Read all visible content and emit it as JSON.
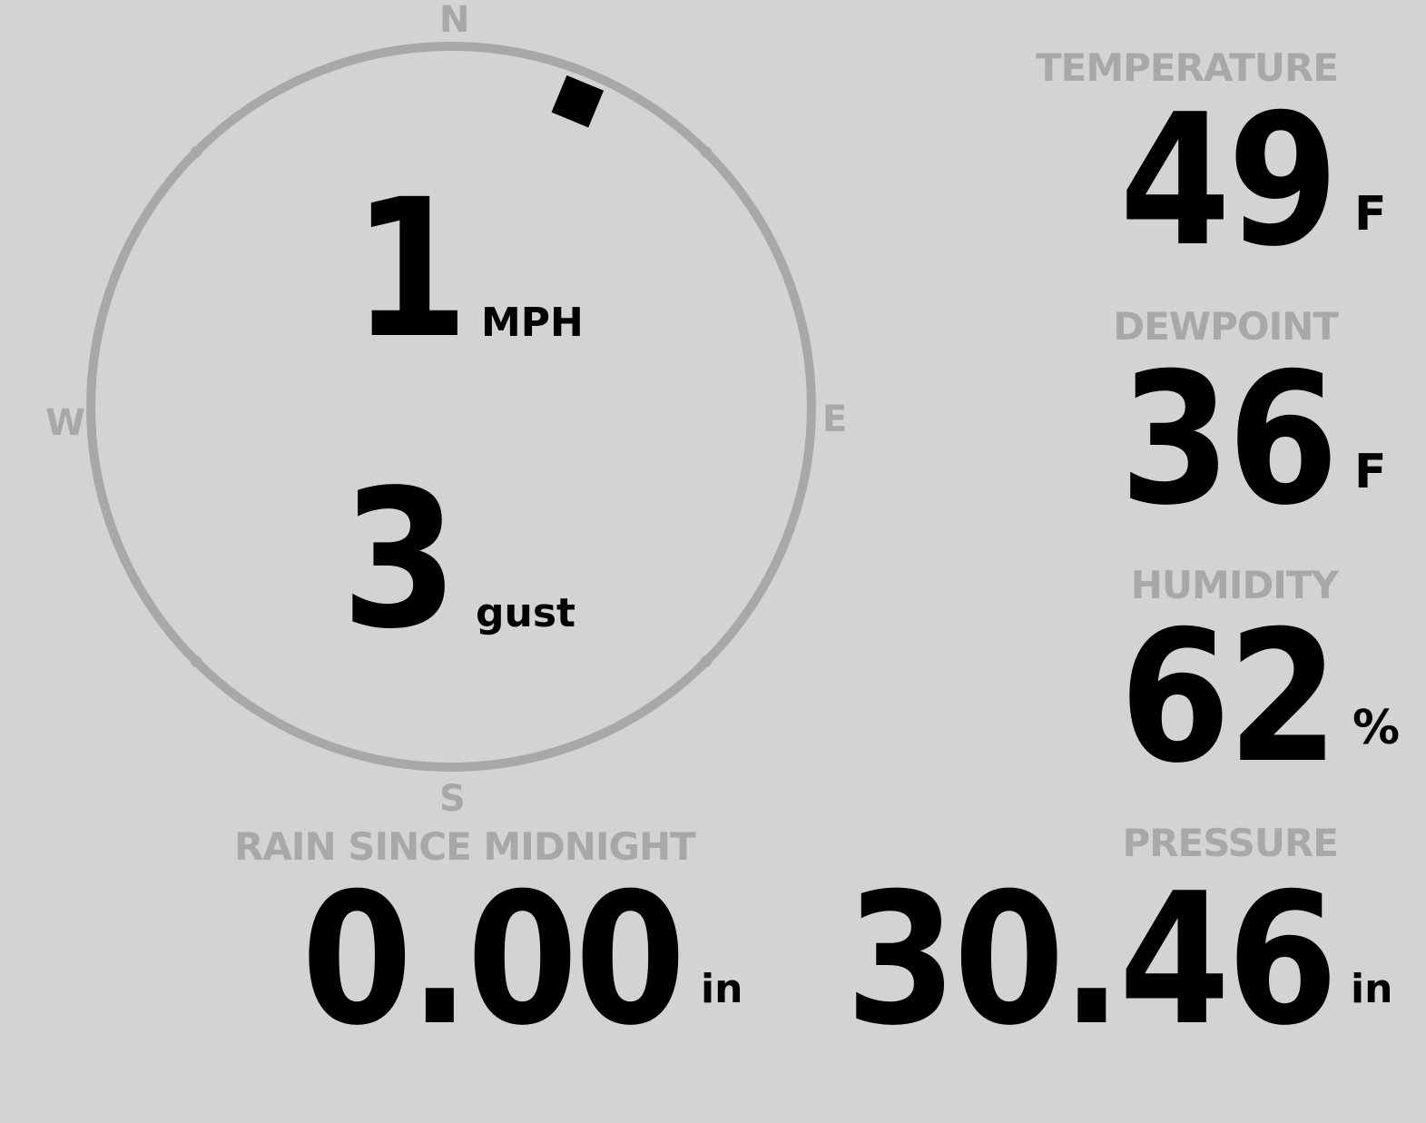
{
  "colors": {
    "background": "#d3d3d3",
    "label": "#a8a8a8",
    "value": "#000000"
  },
  "compass": {
    "north": "N",
    "east": "E",
    "south": "S",
    "west": "W",
    "wind_direction_deg": 22.5
  },
  "wind": {
    "speed": "1",
    "speed_unit": "MPH",
    "gust": "3",
    "gust_unit": "gust"
  },
  "temperature": {
    "label": "TEMPERATURE",
    "value": "49",
    "unit": "F"
  },
  "dewpoint": {
    "label": "DEWPOINT",
    "value": "36",
    "unit": "F"
  },
  "humidity": {
    "label": "HUMIDITY",
    "value": "62",
    "unit": "%"
  },
  "rain": {
    "label": "RAIN SINCE MIDNIGHT",
    "value": "0.00",
    "unit": "in"
  },
  "pressure": {
    "label": "PRESSURE",
    "value": "30.46",
    "unit": "in"
  }
}
